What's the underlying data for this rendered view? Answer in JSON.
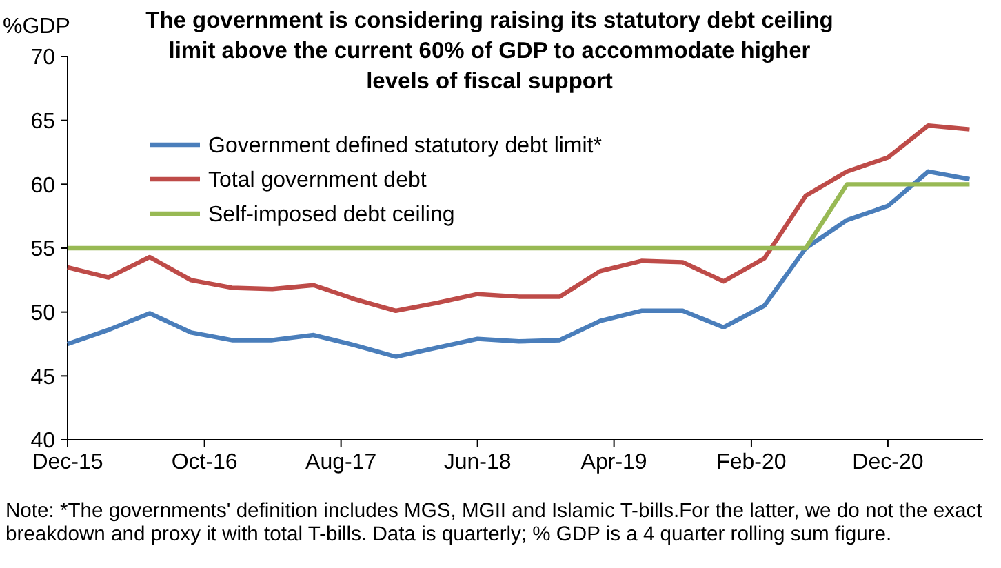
{
  "chart_data": {
    "type": "line",
    "title": "The government is considering raising its statutory debt ceiling limit above the current 60% of GDP to accommodate higher levels of fiscal support",
    "ylabel": "%GDP",
    "x": [
      "2015-12",
      "2016-03",
      "2016-06",
      "2016-09",
      "2016-12",
      "2017-03",
      "2017-06",
      "2017-09",
      "2017-12",
      "2018-03",
      "2018-06",
      "2018-09",
      "2018-12",
      "2019-03",
      "2019-06",
      "2019-09",
      "2019-12",
      "2020-03",
      "2020-06",
      "2020-09",
      "2020-12",
      "2021-03",
      "2021-06"
    ],
    "series": [
      {
        "name": "Government defined statutory debt limit*",
        "color": "#4a7ebb",
        "values": [
          47.5,
          48.6,
          49.9,
          48.4,
          47.8,
          47.8,
          48.2,
          47.4,
          46.5,
          47.2,
          47.9,
          47.7,
          47.8,
          49.3,
          50.1,
          50.1,
          48.8,
          50.5,
          55.0,
          57.2,
          58.3,
          61.0,
          60.4
        ]
      },
      {
        "name": "Total government debt",
        "color": "#be4b48",
        "values": [
          53.5,
          52.7,
          54.3,
          52.5,
          51.9,
          51.8,
          52.1,
          51.0,
          50.1,
          50.7,
          51.4,
          51.2,
          51.2,
          53.2,
          54.0,
          53.9,
          52.4,
          54.2,
          59.1,
          61.0,
          62.1,
          64.6,
          64.3
        ]
      },
      {
        "name": "Self-imposed debt ceiling",
        "color": "#98b954",
        "values": [
          55,
          55,
          55,
          55,
          55,
          55,
          55,
          55,
          55,
          55,
          55,
          55,
          55,
          55,
          55,
          55,
          55,
          55,
          55,
          60,
          60,
          60,
          60
        ]
      }
    ],
    "xlim": [
      "2015-12",
      "2021-07"
    ],
    "xticks": [
      {
        "value": "2015-12",
        "label": "Dec-15"
      },
      {
        "value": "2016-10",
        "label": "Oct-16"
      },
      {
        "value": "2017-08",
        "label": "Aug-17"
      },
      {
        "value": "2018-06",
        "label": "Jun-18"
      },
      {
        "value": "2019-04",
        "label": "Apr-19"
      },
      {
        "value": "2020-02",
        "label": "Feb-20"
      },
      {
        "value": "2020-12",
        "label": "Dec-20"
      }
    ],
    "ylim": [
      40,
      70
    ],
    "yticks": [
      40,
      45,
      50,
      55,
      60,
      65,
      70
    ],
    "grid": false,
    "legend": "top left",
    "line_style": "solid",
    "marker": "none",
    "annotations": [
      "Note: *The governments' definition includes MGS, MGII and Islamic T-bills.For the latter, we do not the exact breakdown and proxy it with total T-bills. Data is quarterly; % GDP is a 4 quarter rolling sum figure."
    ]
  }
}
